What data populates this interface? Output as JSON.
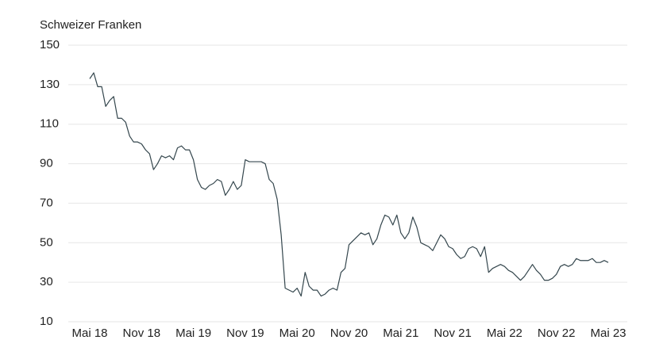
{
  "chart_data": {
    "type": "line",
    "title": "Schweizer Franken",
    "categories": [
      "Mai 18",
      null,
      null,
      null,
      null,
      null,
      null,
      null,
      null,
      null,
      null,
      null,
      null,
      "Nov 18",
      null,
      null,
      null,
      null,
      null,
      null,
      null,
      null,
      null,
      null,
      null,
      null,
      "Mai 19",
      null,
      null,
      null,
      null,
      null,
      null,
      null,
      null,
      null,
      null,
      null,
      null,
      "Nov 19",
      null,
      null,
      null,
      null,
      null,
      null,
      null,
      null,
      null,
      null,
      null,
      null,
      "Mai 20",
      null,
      null,
      null,
      null,
      null,
      null,
      null,
      null,
      null,
      null,
      null,
      null,
      "Nov 20",
      null,
      null,
      null,
      null,
      null,
      null,
      null,
      null,
      null,
      null,
      null,
      null,
      "Mai 21",
      null,
      null,
      null,
      null,
      null,
      null,
      null,
      null,
      null,
      null,
      null,
      null,
      "Nov 21",
      null,
      null,
      null,
      null,
      null,
      null,
      null,
      null,
      null,
      null,
      null,
      null,
      "Mai 22",
      null,
      null,
      null,
      null,
      null,
      null,
      null,
      null,
      null,
      null,
      null,
      null,
      "Nov 22",
      null,
      null,
      null,
      null,
      null,
      null,
      null,
      null,
      null,
      null,
      null,
      null,
      "Mai 23"
    ],
    "values": [
      133,
      136,
      129,
      129,
      119,
      122,
      124,
      113,
      113,
      111,
      104,
      101,
      101,
      100,
      97,
      95,
      87,
      90,
      94,
      93,
      94,
      92,
      98,
      99,
      97,
      97,
      92,
      82,
      78,
      77,
      79,
      80,
      82,
      81,
      74,
      77,
      81,
      77,
      79,
      92,
      91,
      91,
      91,
      91,
      90,
      82,
      80,
      72,
      54,
      27,
      26,
      25,
      27,
      23,
      35,
      28,
      26,
      26,
      23,
      24,
      26,
      27,
      26,
      35,
      37,
      49,
      51,
      53,
      55,
      54,
      55,
      49,
      52,
      59,
      64,
      63,
      59,
      64,
      55,
      52,
      55,
      63,
      58,
      50,
      49,
      48,
      46,
      50,
      54,
      52,
      48,
      47,
      44,
      42,
      43,
      47,
      48,
      47,
      43,
      48,
      35,
      37,
      38,
      39,
      38,
      36,
      35,
      33,
      31,
      33,
      36,
      39,
      36,
      34,
      31,
      31,
      32,
      34,
      38,
      39,
      38,
      39,
      42,
      41,
      41,
      41,
      42,
      40,
      40,
      41,
      40
    ],
    "color": "#34464d",
    "ylim": [
      10,
      150
    ],
    "yticks": [
      10,
      30,
      50,
      70,
      90,
      110,
      130,
      150
    ],
    "grid": true
  }
}
